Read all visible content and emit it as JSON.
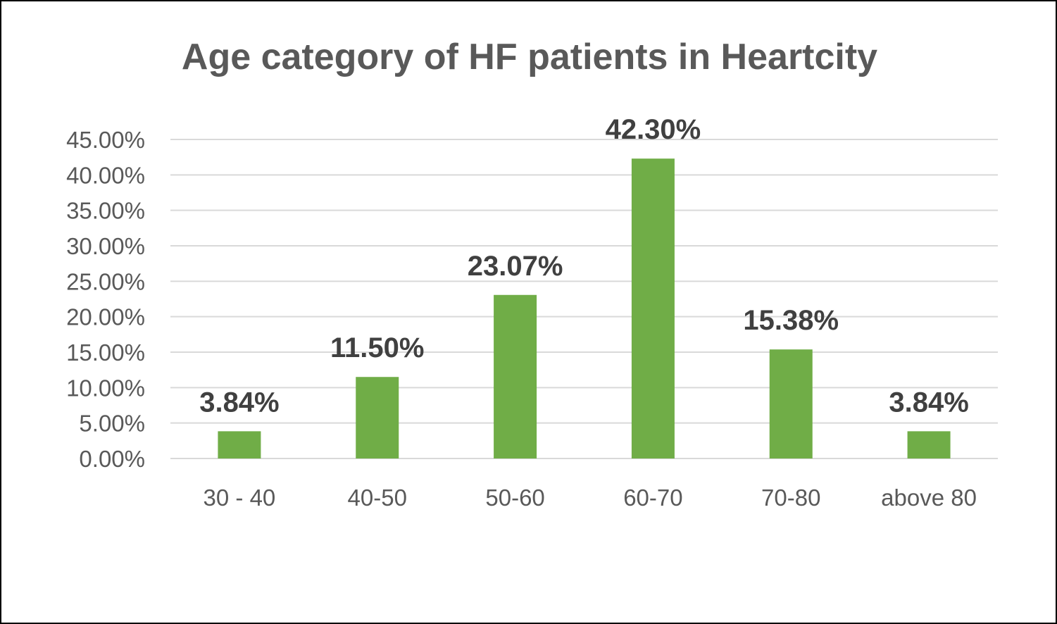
{
  "chart_data": {
    "type": "bar",
    "title": "Age category of HF patients in Heartcity",
    "xlabel": "",
    "ylabel": "",
    "categories": [
      "30 - 40",
      "40-50",
      "50-60",
      "60-70",
      "70-80",
      "above 80"
    ],
    "values": [
      3.84,
      11.5,
      23.07,
      42.3,
      15.38,
      3.84
    ],
    "data_labels": [
      "3.84%",
      "11.50%",
      "23.07%",
      "42.30%",
      "15.38%",
      "3.84%"
    ],
    "ylim": [
      0,
      45
    ],
    "yticks": [
      0,
      5,
      10,
      15,
      20,
      25,
      30,
      35,
      40,
      45
    ],
    "ytick_labels": [
      "0.00%",
      "5.00%",
      "10.00%",
      "15.00%",
      "20.00%",
      "25.00%",
      "30.00%",
      "35.00%",
      "40.00%",
      "45.00%"
    ],
    "grid": true,
    "legend": "none",
    "bar_color": "#70AD47",
    "grid_color": "#D9D9D9"
  }
}
